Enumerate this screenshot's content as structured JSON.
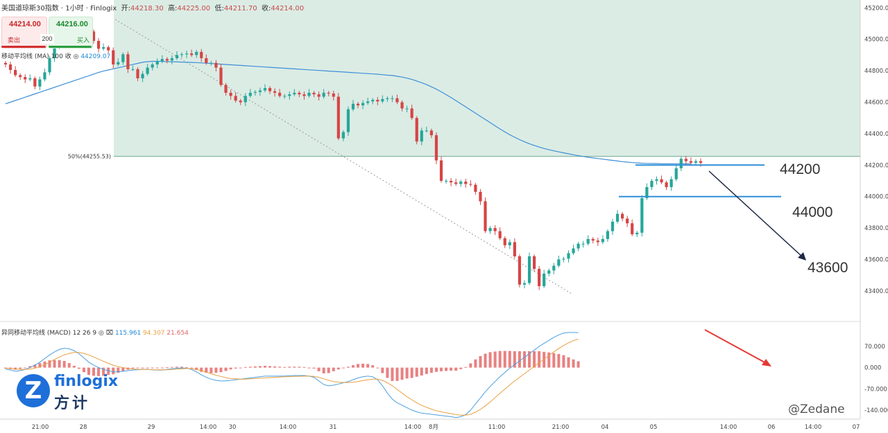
{
  "header": {
    "title": "美国道琼斯30指数 · 1小时 · Finlogix",
    "open_label": "开:",
    "open": "44218.30",
    "high_label": "高:",
    "high": "44225.00",
    "low_label": "低:",
    "low": "44211.70",
    "close_label": "收:",
    "close": "44214.00"
  },
  "trade": {
    "sell_price": "44214.00",
    "sell_label": "卖出",
    "buy_price": "44216.00",
    "buy_label": "买入",
    "quantity": "200"
  },
  "ma_legend": {
    "label": "移动平均线 (MA) 100 收",
    "value": "44209.07"
  },
  "macd_legend": {
    "label": "异同移动平均线 (MACD) 12 26 9",
    "macd": "115.961",
    "signal": "94.307",
    "hist": "21.654"
  },
  "fib_label": "50%(44255.53)",
  "annotations": {
    "level1": "44200",
    "level2": "44000",
    "level3": "43600"
  },
  "logo": {
    "mark": "Z",
    "name": "finlogix",
    "cn": "方计"
  },
  "watermark": "@Zedane",
  "colors": {
    "up": "#26a69a",
    "down": "#d64545",
    "ma": "#3d8fd6",
    "zone": "#dbece5",
    "level": "#2f8fd8",
    "arrow": "#e53935"
  },
  "chart_data": {
    "type": "candlestick",
    "instrument": "美国道琼斯30指数",
    "timeframe": "1小时",
    "x_ticks": [
      "21:00",
      "28",
      "29",
      "14:00",
      "30",
      "14:00",
      "31",
      "14:00",
      "8月",
      "11:00",
      "21:00",
      "04",
      "05",
      "14:00",
      "06",
      "14:00",
      "07"
    ],
    "price_axis": {
      "ticks": [
        45200,
        45000,
        44800,
        44600,
        44400,
        44200,
        44000,
        43800,
        43600,
        43400
      ],
      "tick_labels": [
        "45200.00",
        "45000.00",
        "44800.00",
        "44600.00",
        "44400.00",
        "44200.00",
        "44000.00",
        "43800.00",
        "43600.00",
        "43400.00"
      ],
      "ylim": [
        43210,
        45250
      ]
    },
    "macd_axis": {
      "ticks": [
        70,
        0,
        -70,
        -140
      ],
      "tick_labels": [
        "70.000",
        "0.000",
        "-70.000",
        "-140.000"
      ],
      "ylim": [
        -170,
        150
      ]
    },
    "levels": [
      44200,
      44000
    ],
    "fib_50": 44255.53,
    "closes": [
      44840,
      44805,
      44772,
      44760,
      44745,
      44752,
      44700,
      44745,
      44790,
      44880,
      44950,
      45010,
      45030,
      45060,
      45080,
      45100,
      45110,
      45050,
      44990,
      44940,
      44950,
      44930,
      44840,
      44855,
      44905,
      44810,
      44810,
      44752,
      44780,
      44820,
      44840,
      44860,
      44875,
      44865,
      44880,
      44900,
      44905,
      44910,
      44900,
      44920,
      44880,
      44850,
      44850,
      44820,
      44710,
      44660,
      44640,
      44610,
      44600,
      44640,
      44660,
      44665,
      44675,
      44690,
      44670,
      44660,
      44640,
      44640,
      44650,
      44660,
      44650,
      44640,
      44660,
      44650,
      44635,
      44660,
      44655,
      44635,
      44370,
      44410,
      44555,
      44590,
      44580,
      44595,
      44605,
      44615,
      44605,
      44620,
      44625,
      44625,
      44600,
      44560,
      44560,
      44500,
      44350,
      44420,
      44420,
      44390,
      44230,
      44100,
      44100,
      44090,
      44080,
      44095,
      44080,
      44075,
      44030,
      43970,
      43780,
      43800,
      43780,
      43735,
      43690,
      43710,
      43620,
      43440,
      43450,
      43620,
      43540,
      43430,
      43510,
      43530,
      43560,
      43600,
      43605,
      43640,
      43670,
      43700,
      43700,
      43730,
      43720,
      43710,
      43730,
      43780,
      43840,
      43890,
      43860,
      43830,
      43760,
      43770,
      43990,
      44060,
      44100,
      44110,
      44090,
      44060,
      44110,
      44180,
      44240,
      44225,
      44215,
      44225,
      44214
    ],
    "ma100": [
      44590,
      44600,
      44611,
      44621,
      44632,
      44642,
      44653,
      44663,
      44674,
      44684,
      44695,
      44705,
      44716,
      44726,
      44737,
      44747,
      44758,
      44768,
      44779,
      44789,
      44798,
      44805,
      44812,
      44819,
      44826,
      44833,
      44840,
      44847,
      44854,
      44858,
      44860,
      44860,
      44859,
      44858,
      44857,
      44856,
      44855,
      44854,
      44853,
      44852,
      44850,
      44848,
      44846,
      44844,
      44842,
      44840,
      44838,
      44836,
      44834,
      44832,
      44830,
      44828,
      44826,
      44824,
      44822,
      44820,
      44818,
      44816,
      44814,
      44812,
      44810,
      44808,
      44806,
      44804,
      44802,
      44800,
      44798,
      44796,
      44794,
      44792,
      44790,
      44788,
      44786,
      44784,
      44782,
      44780,
      44778,
      44775,
      44772,
      44770,
      44765,
      44760,
      44753,
      44745,
      44735,
      44724,
      44712,
      44698,
      44683,
      44666,
      44648,
      44630,
      44610,
      44590,
      44570,
      44550,
      44530,
      44510,
      44490,
      44470,
      44450,
      44430,
      44411,
      44393,
      44377,
      44362,
      44348,
      44336,
      44325,
      44315,
      44306,
      44298,
      44291,
      44284,
      44278,
      44272,
      44266,
      44260,
      44255,
      44250,
      44246,
      44242,
      44238,
      44234,
      44230,
      44226,
      44222,
      44219,
      44216,
      44214,
      44212,
      44211,
      44210,
      44210,
      44209,
      44209,
      44209,
      44209,
      44209,
      44209,
      44209
    ],
    "macd": [
      -5,
      -8,
      -12,
      -10,
      -6,
      0,
      8,
      18,
      30,
      42,
      52,
      60,
      64,
      62,
      56,
      46,
      32,
      18,
      8,
      0,
      -6,
      -10,
      -14,
      -14,
      -12,
      -10,
      -8,
      -7,
      -6,
      -6,
      -7,
      -8,
      -8,
      -6,
      -4,
      -2,
      -1,
      -2,
      -6,
      -14,
      -24,
      -32,
      -38,
      -42,
      -44,
      -44,
      -42,
      -40,
      -38,
      -36,
      -34,
      -32,
      -30,
      -28,
      -28,
      -28,
      -28,
      -28,
      -27,
      -26,
      -26,
      -26,
      -28,
      -32,
      -44,
      -56,
      -60,
      -58,
      -54,
      -50,
      -46,
      -40,
      -34,
      -30,
      -28,
      -30,
      -40,
      -60,
      -84,
      -104,
      -116,
      -124,
      -132,
      -140,
      -146,
      -150,
      -152,
      -154,
      -156,
      -158,
      -160,
      -162,
      -165,
      -162,
      -155,
      -140,
      -120,
      -100,
      -80,
      -62,
      -46,
      -30,
      -16,
      -2,
      10,
      22,
      34,
      46,
      58,
      70,
      80,
      90,
      100,
      108,
      114,
      116,
      116,
      115
    ],
    "signal": [
      -2,
      -3,
      -5,
      -6,
      -6,
      -5,
      -2,
      3,
      10,
      18,
      27,
      35,
      42,
      47,
      50,
      50,
      47,
      42,
      35,
      28,
      21,
      14,
      8,
      3,
      0,
      -3,
      -5,
      -6,
      -6,
      -6,
      -7,
      -7,
      -7,
      -7,
      -6,
      -5,
      -4,
      -3,
      -4,
      -6,
      -10,
      -15,
      -20,
      -25,
      -29,
      -33,
      -36,
      -37,
      -38,
      -38,
      -37,
      -36,
      -35,
      -34,
      -33,
      -32,
      -31,
      -30,
      -30,
      -29,
      -29,
      -28,
      -28,
      -29,
      -32,
      -37,
      -42,
      -46,
      -48,
      -49,
      -49,
      -48,
      -46,
      -43,
      -40,
      -38,
      -38,
      -42,
      -50,
      -60,
      -72,
      -84,
      -96,
      -106,
      -116,
      -124,
      -131,
      -137,
      -142,
      -146,
      -149,
      -152,
      -155,
      -157,
      -157,
      -154,
      -147,
      -138,
      -126,
      -113,
      -99,
      -85,
      -71,
      -57,
      -44,
      -32,
      -20,
      -8,
      4,
      16,
      28,
      40,
      52,
      63,
      73,
      82,
      89,
      94
    ]
  }
}
